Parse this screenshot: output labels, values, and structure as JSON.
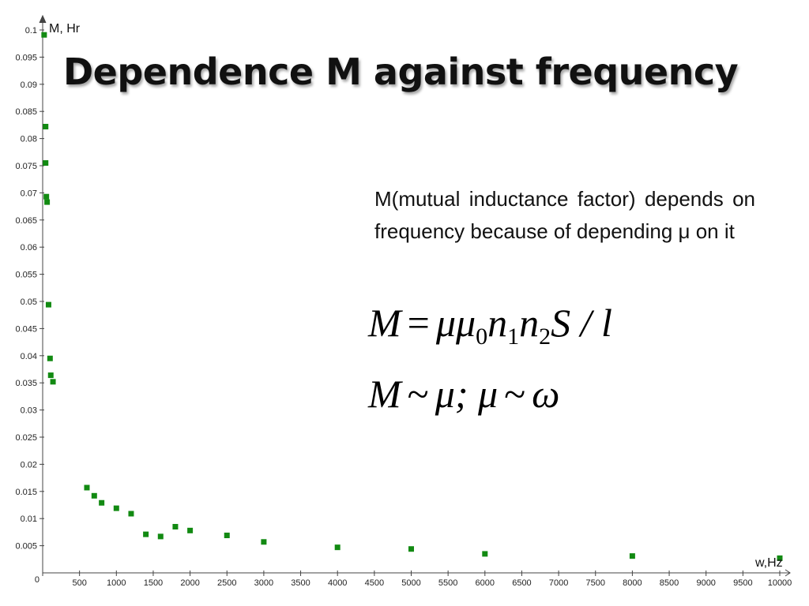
{
  "slide": {
    "title": "Dependence M against frequency",
    "description": "M(mutual inductance factor) depends on frequency because of depending μ on it",
    "formula1": {
      "lhs": "M",
      "eq": "=",
      "a": "μμ",
      "a_sub": "0",
      "b": "n",
      "b_sub": "1",
      "c": "n",
      "c_sub": "2",
      "rest": "S / l"
    },
    "formula2": {
      "lhs": "M",
      "sim1": "~",
      "mu": "μ;",
      "mu2": "μ",
      "sim2": "~",
      "omega": "ω"
    }
  },
  "chart_data": {
    "type": "scatter",
    "title": "Dependence M against frequency",
    "xlabel": "w,Hz",
    "ylabel": "M, Hr",
    "xlim": [
      0,
      10000
    ],
    "ylim": [
      0,
      0.1
    ],
    "x_ticks": [
      0,
      500,
      1000,
      1500,
      2000,
      2500,
      3000,
      3500,
      4000,
      4500,
      5000,
      5500,
      6000,
      6500,
      7000,
      7500,
      8000,
      8500,
      9000,
      9500,
      10000
    ],
    "y_ticks": [
      0.005,
      0.01,
      0.015,
      0.02,
      0.025,
      0.03,
      0.035,
      0.04,
      0.045,
      0.05,
      0.055,
      0.06,
      0.065,
      0.07,
      0.075,
      0.08,
      0.085,
      0.09,
      0.095,
      0.1
    ],
    "x_tick_labels": [
      "0",
      "500",
      "1000",
      "1500",
      "2000",
      "2500",
      "3000",
      "3500",
      "4000",
      "4500",
      "5000",
      "5500",
      "6000",
      "6500",
      "7000",
      "7500",
      "8000",
      "8500",
      "9000",
      "9500",
      "10000"
    ],
    "y_tick_labels": [
      "0.005",
      "0.01",
      "0.015",
      "0.02",
      "0.025",
      "0.03",
      "0.035",
      "0.04",
      "0.045",
      "0.05",
      "0.055",
      "0.06",
      "0.065",
      "0.07",
      "0.075",
      "0.08",
      "0.085",
      "0.09",
      "0.095",
      "0.1"
    ],
    "grid": false,
    "marker_color": "#128a12",
    "axis_color": "#444444",
    "series": [
      {
        "points": [
          {
            "x": 20,
            "y": 0.0991
          },
          {
            "x": 40,
            "y": 0.0822
          },
          {
            "x": 40,
            "y": 0.0755
          },
          {
            "x": 50,
            "y": 0.0693
          },
          {
            "x": 60,
            "y": 0.0683
          },
          {
            "x": 80,
            "y": 0.0494
          },
          {
            "x": 100,
            "y": 0.0395
          },
          {
            "x": 110,
            "y": 0.0364
          },
          {
            "x": 140,
            "y": 0.0352
          },
          {
            "x": 600,
            "y": 0.0157
          },
          {
            "x": 700,
            "y": 0.0142
          },
          {
            "x": 800,
            "y": 0.0129
          },
          {
            "x": 1000,
            "y": 0.0119
          },
          {
            "x": 1200,
            "y": 0.0109
          },
          {
            "x": 1400,
            "y": 0.0071
          },
          {
            "x": 1600,
            "y": 0.0067
          },
          {
            "x": 1800,
            "y": 0.0085
          },
          {
            "x": 2000,
            "y": 0.0078
          },
          {
            "x": 2500,
            "y": 0.0069
          },
          {
            "x": 3000,
            "y": 0.0057
          },
          {
            "x": 4000,
            "y": 0.0047
          },
          {
            "x": 5000,
            "y": 0.0044
          },
          {
            "x": 6000,
            "y": 0.0035
          },
          {
            "x": 8000,
            "y": 0.0031
          },
          {
            "x": 10000,
            "y": 0.0027
          }
        ]
      }
    ]
  }
}
